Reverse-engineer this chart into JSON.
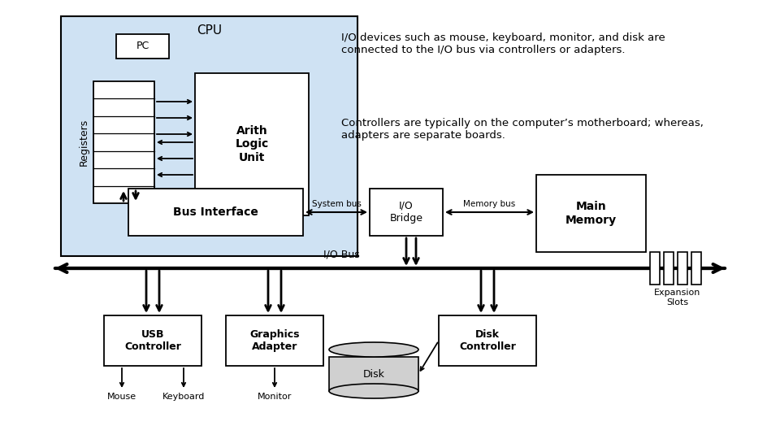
{
  "bg_color": "#ffffff",
  "cpu_bg": "#cfe2f3",
  "text1": "I/O devices such as mouse, keyboard, monitor, and disk are\nconnected to the I/O bus via controllers or adapters.",
  "text2": "Controllers are typically on the computer’s motherboard; whereas,\nadapters are separate boards.",
  "system_bus_label": "System bus",
  "memory_bus_label": "Memory bus",
  "io_bus_label": "I/O Bus",
  "expansion_slots_label": "Expansion\nSlots",
  "pc_label": "PC",
  "registers_label": "Registers",
  "alu_label": "Arith\nLogic\nUnit",
  "bus_interface_label": "Bus Interface",
  "io_bridge_label": "I/O\nBridge",
  "main_memory_label": "Main\nMemory",
  "usb_label": "USB\nController",
  "graphics_label": "Graphics\nAdapter",
  "disk_ctrl_label": "Disk\nController",
  "mouse_label": "Mouse",
  "keyboard_label": "Keyboard",
  "monitor_label": "Monitor",
  "disk_label": "Disk",
  "cpu_label": "CPU"
}
